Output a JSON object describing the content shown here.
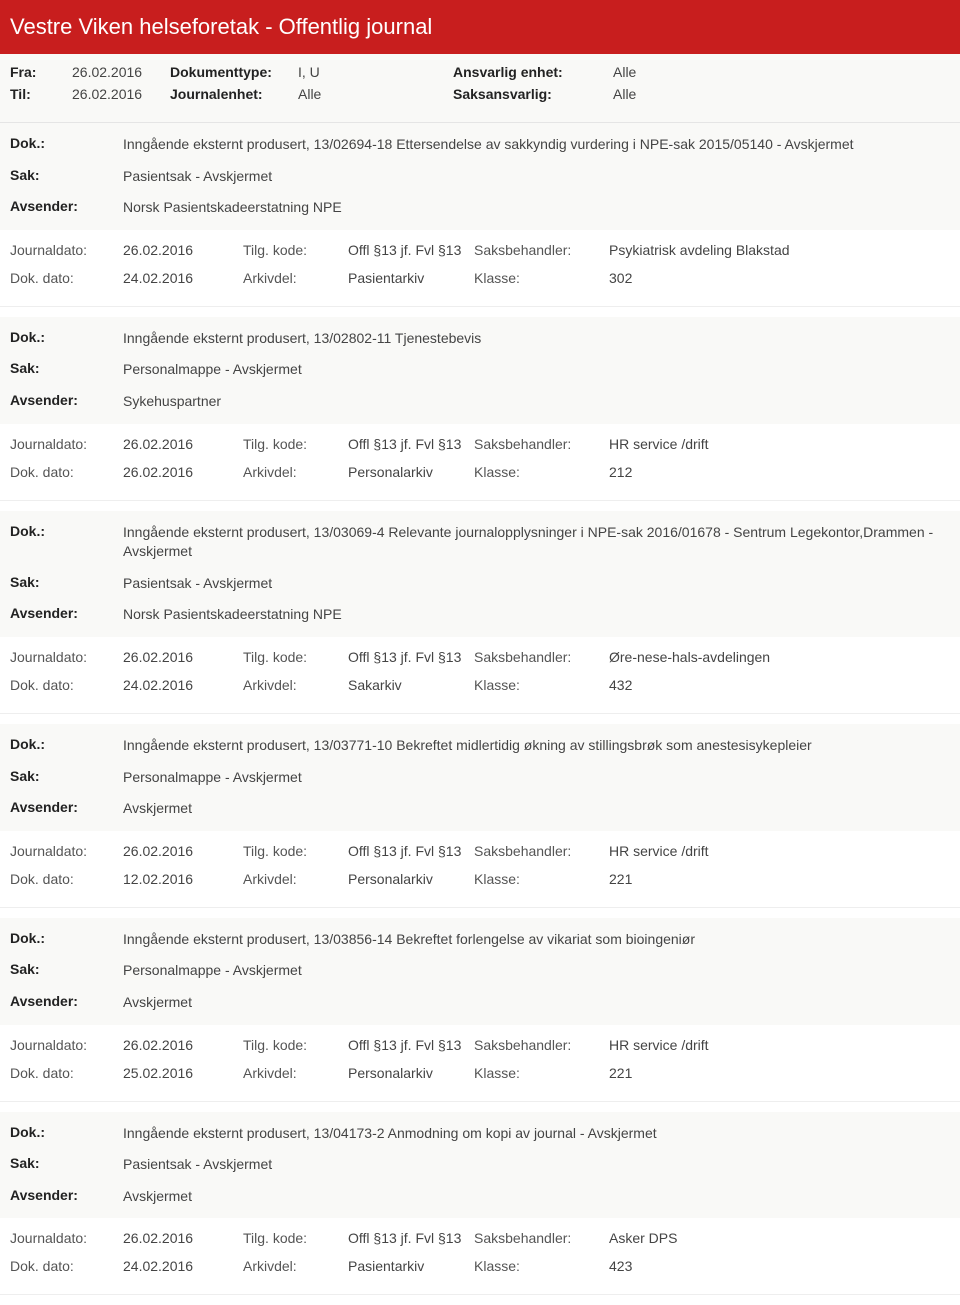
{
  "header": {
    "title": "Vestre Viken helseforetak - Offentlig journal"
  },
  "filter": {
    "fra_label": "Fra:",
    "fra_value": "26.02.2016",
    "til_label": "Til:",
    "til_value": "26.02.2016",
    "doktype_label": "Dokumenttype:",
    "doktype_value": "I, U",
    "journalenhet_label": "Journalenhet:",
    "journalenhet_value": "Alle",
    "ansvarlig_label": "Ansvarlig enhet:",
    "ansvarlig_value": "Alle",
    "saksansvarlig_label": "Saksansvarlig:",
    "saksansvarlig_value": "Alle"
  },
  "labels": {
    "dok": "Dok.:",
    "sak": "Sak:",
    "avsender": "Avsender:",
    "journaldato": "Journaldato:",
    "dokdato": "Dok. dato:",
    "tilgkode": "Tilg. kode:",
    "arkivdel": "Arkivdel:",
    "saksbehandler": "Saksbehandler:",
    "klasse": "Klasse:"
  },
  "entries": [
    {
      "dok": "Inngående eksternt produsert, 13/02694-18 Ettersendelse av sakkyndig vurdering i NPE-sak 2015/05140 - Avskjermet",
      "sak": "Pasientsak - Avskjermet",
      "avsender": "Norsk Pasientskadeerstatning NPE",
      "journaldato": "26.02.2016",
      "dokdato": "24.02.2016",
      "tilgkode": "Offl §13 jf. Fvl §13",
      "arkivdel": "Pasientarkiv",
      "saksbehandler": "Psykiatrisk avdeling Blakstad",
      "klasse": "302"
    },
    {
      "dok": "Inngående eksternt produsert, 13/02802-11 Tjenestebevis",
      "sak": "Personalmappe - Avskjermet",
      "avsender": "Sykehuspartner",
      "journaldato": "26.02.2016",
      "dokdato": "26.02.2016",
      "tilgkode": "Offl §13 jf. Fvl §13",
      "arkivdel": "Personalarkiv",
      "saksbehandler": "HR service /drift",
      "klasse": "212"
    },
    {
      "dok": "Inngående eksternt produsert, 13/03069-4 Relevante journalopplysninger i NPE-sak 2016/01678 - Sentrum Legekontor,Drammen - Avskjermet",
      "sak": "Pasientsak - Avskjermet",
      "avsender": "Norsk Pasientskadeerstatning NPE",
      "journaldato": "26.02.2016",
      "dokdato": "24.02.2016",
      "tilgkode": "Offl §13 jf. Fvl §13",
      "arkivdel": "Sakarkiv",
      "saksbehandler": "Øre-nese-hals-avdelingen",
      "klasse": "432"
    },
    {
      "dok": "Inngående eksternt produsert, 13/03771-10 Bekreftet midlertidig økning av stillingsbrøk som anestesisykepleier",
      "sak": "Personalmappe - Avskjermet",
      "avsender": "Avskjermet",
      "journaldato": "26.02.2016",
      "dokdato": "12.02.2016",
      "tilgkode": "Offl §13 jf. Fvl §13",
      "arkivdel": "Personalarkiv",
      "saksbehandler": "HR service /drift",
      "klasse": "221"
    },
    {
      "dok": "Inngående eksternt produsert, 13/03856-14 Bekreftet forlengelse av vikariat som bioingeniør",
      "sak": "Personalmappe - Avskjermet",
      "avsender": "Avskjermet",
      "journaldato": "26.02.2016",
      "dokdato": "25.02.2016",
      "tilgkode": "Offl §13 jf. Fvl §13",
      "arkivdel": "Personalarkiv",
      "saksbehandler": "HR service /drift",
      "klasse": "221"
    },
    {
      "dok": "Inngående eksternt produsert, 13/04173-2 Anmodning om kopi av journal - Avskjermet",
      "sak": "Pasientsak - Avskjermet",
      "avsender": "Avskjermet",
      "journaldato": "26.02.2016",
      "dokdato": "24.02.2016",
      "tilgkode": "Offl §13 jf. Fvl §13",
      "arkivdel": "Pasientarkiv",
      "saksbehandler": "Asker DPS",
      "klasse": "423"
    }
  ]
}
